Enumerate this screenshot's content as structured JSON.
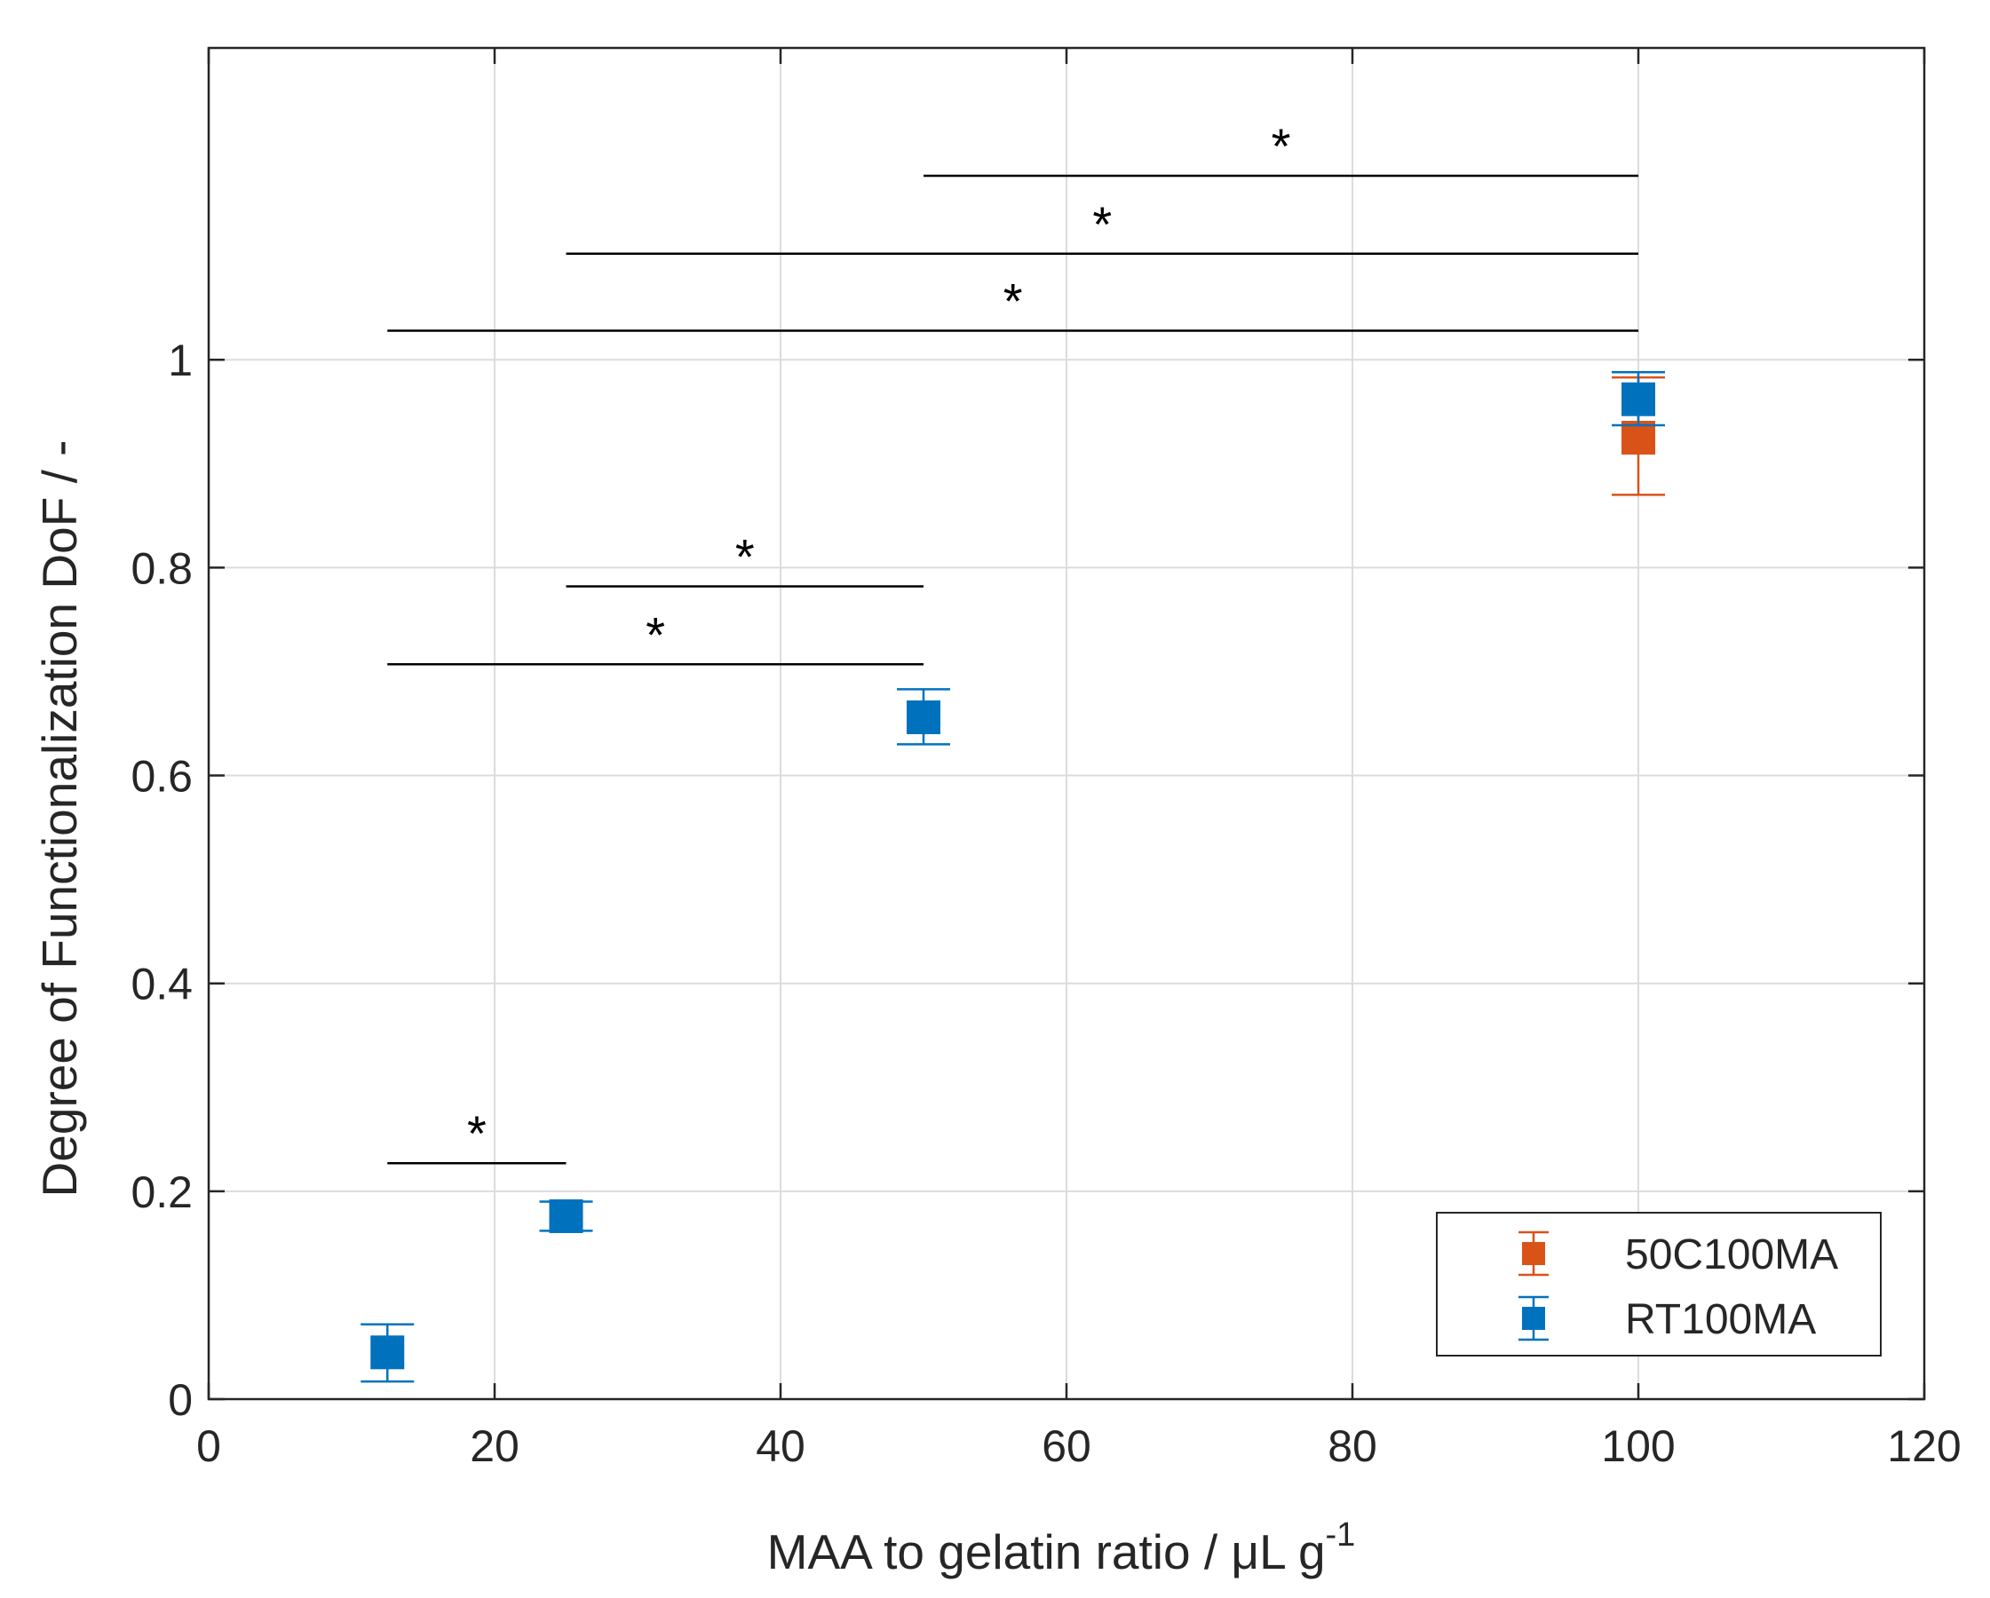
{
  "chart_data": {
    "type": "scatter",
    "title": "",
    "xlabel": "MAA to gelatin ratio / μL g",
    "xlabel_superscript": "-1",
    "ylabel": "Degree of Functionalization DoF / -",
    "xlim": [
      0,
      120
    ],
    "ylim": [
      0,
      1.3
    ],
    "xticks": [
      0,
      20,
      40,
      60,
      80,
      100,
      120
    ],
    "xtick_labels": [
      "0",
      "20",
      "40",
      "60",
      "80",
      "100",
      "120"
    ],
    "yticks": [
      0,
      0.2,
      0.4,
      0.6,
      0.8,
      1
    ],
    "ytick_labels": [
      "0",
      "0.2",
      "0.4",
      "0.6",
      "0.8",
      "1"
    ],
    "grid": true,
    "legend_position": "bottom-right",
    "series": [
      {
        "name": "50C100MA",
        "color": "#D95319",
        "marker": "square",
        "points": [
          {
            "x": 100,
            "y": 0.925,
            "err_low": 0.87,
            "err_high": 0.983
          }
        ]
      },
      {
        "name": "RT100MA",
        "color": "#0072BD",
        "marker": "square",
        "points": [
          {
            "x": 12.5,
            "y": 0.045,
            "err_low": 0.017,
            "err_high": 0.072
          },
          {
            "x": 25,
            "y": 0.176,
            "err_low": 0.162,
            "err_high": 0.19
          },
          {
            "x": 50,
            "y": 0.656,
            "err_low": 0.63,
            "err_high": 0.683
          },
          {
            "x": 100,
            "y": 0.962,
            "err_low": 0.937,
            "err_high": 0.988
          }
        ]
      }
    ],
    "significance": [
      {
        "x1": 12.5,
        "x2": 25,
        "y": 0.227,
        "label": "*"
      },
      {
        "x1": 12.5,
        "x2": 50,
        "y": 0.707,
        "label": "*"
      },
      {
        "x1": 25,
        "x2": 50,
        "y": 0.782,
        "label": "*"
      },
      {
        "x1": 12.5,
        "x2": 100,
        "y": 1.028,
        "label": "*"
      },
      {
        "x1": 25,
        "x2": 100,
        "y": 1.102,
        "label": "*"
      },
      {
        "x1": 50,
        "x2": 100,
        "y": 1.177,
        "label": "*"
      }
    ]
  }
}
